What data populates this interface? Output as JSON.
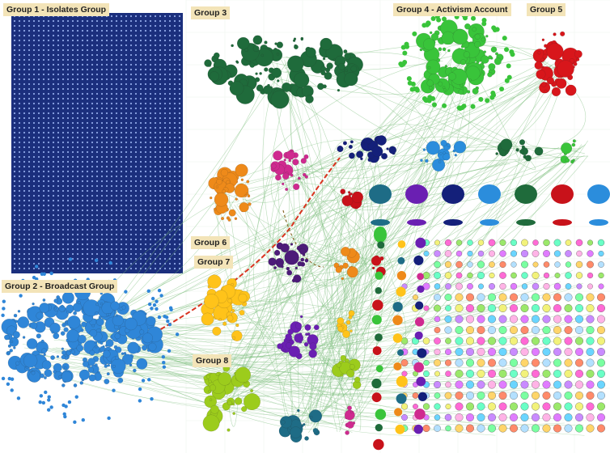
{
  "labels": {
    "g1": "Group 1 - Isolates Group",
    "g2": "Group 2 - Broadcast Group",
    "g3": "Group 3",
    "g4": "Group 4 - Activism Account",
    "g5": "Group 5",
    "g6": "Group 6",
    "g7": "Group 7",
    "g8": "Group 8"
  },
  "colors": {
    "background": "#ffffff",
    "isolates_panel": "#1b2f7d",
    "isolate_dot": "#8fa6e6",
    "edge": "#7fbf7f",
    "highlight_edge": "#d9331f",
    "label_bg": "#f3e4b8",
    "group2": "#2f86d8",
    "group3": "#1f6b3b",
    "group4": "#39c43a",
    "group5": "#d8161b",
    "group6": "#ee8a1a",
    "group7": "#ffc31a",
    "group8": "#9ccc1c"
  }
}
